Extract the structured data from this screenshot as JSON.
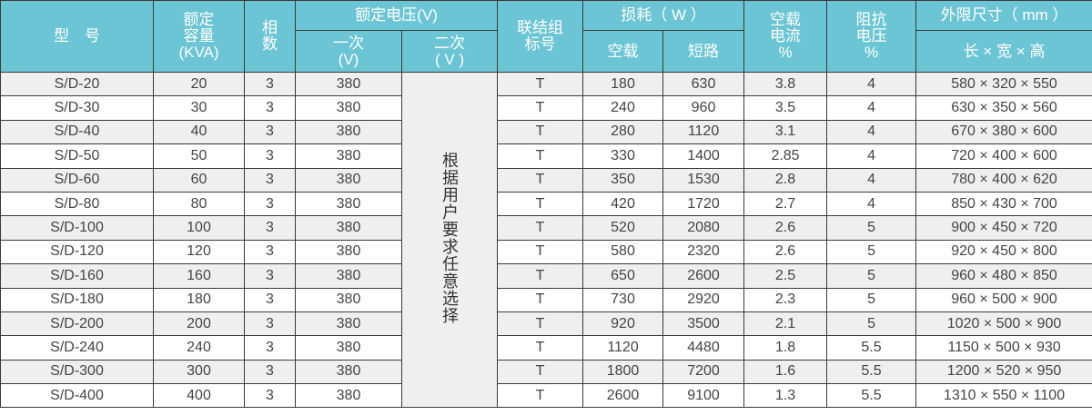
{
  "header": {
    "model": "型　号",
    "capacity": [
      "额定",
      "容量",
      "(KVA)"
    ],
    "phases": [
      "相",
      "数"
    ],
    "rated_voltage": "额定电压(V)",
    "primary": [
      "一次",
      "(V)"
    ],
    "secondary": [
      "二次",
      "( V )"
    ],
    "connection": [
      "联结组",
      "标号"
    ],
    "loss": "损耗（ W ）",
    "loss_noload": "空载",
    "loss_short": "短路",
    "noload_current": [
      "空载",
      "电流",
      "%"
    ],
    "impedance": [
      "阻抗",
      "电压",
      "%"
    ],
    "dimensions": "外限尺寸（ mm ）",
    "dimensions_sub": "长 × 宽 × 高"
  },
  "secondary_note": "根据用户要求任意选择",
  "rows": [
    {
      "model": "S/D-20",
      "kva": "20",
      "phase": "3",
      "primary": "380",
      "conn": "T",
      "p0": "180",
      "pk": "630",
      "i0": "3.8",
      "uk": "4",
      "dim": "580 × 320 × 550"
    },
    {
      "model": "S/D-30",
      "kva": "30",
      "phase": "3",
      "primary": "380",
      "conn": "T",
      "p0": "240",
      "pk": "960",
      "i0": "3.5",
      "uk": "4",
      "dim": "630 × 350 × 560"
    },
    {
      "model": "S/D-40",
      "kva": "40",
      "phase": "3",
      "primary": "380",
      "conn": "T",
      "p0": "280",
      "pk": "1120",
      "i0": "3.1",
      "uk": "4",
      "dim": "670 × 380 × 600"
    },
    {
      "model": "S/D-50",
      "kva": "50",
      "phase": "3",
      "primary": "380",
      "conn": "T",
      "p0": "330",
      "pk": "1400",
      "i0": "2.85",
      "uk": "4",
      "dim": "720 × 400 × 600"
    },
    {
      "model": "S/D-60",
      "kva": "60",
      "phase": "3",
      "primary": "380",
      "conn": "T",
      "p0": "350",
      "pk": "1530",
      "i0": "2.8",
      "uk": "4",
      "dim": "780 × 400 × 620"
    },
    {
      "model": "S/D-80",
      "kva": "80",
      "phase": "3",
      "primary": "380",
      "conn": "T",
      "p0": "420",
      "pk": "1720",
      "i0": "2.7",
      "uk": "4",
      "dim": "850 × 430 × 700"
    },
    {
      "model": "S/D-100",
      "kva": "100",
      "phase": "3",
      "primary": "380",
      "conn": "T",
      "p0": "520",
      "pk": "2080",
      "i0": "2.6",
      "uk": "5",
      "dim": "900 × 450 × 720"
    },
    {
      "model": "S/D-120",
      "kva": "120",
      "phase": "3",
      "primary": "380",
      "conn": "T",
      "p0": "580",
      "pk": "2320",
      "i0": "2.6",
      "uk": "5",
      "dim": "920 × 450 × 800"
    },
    {
      "model": "S/D-160",
      "kva": "160",
      "phase": "3",
      "primary": "380",
      "conn": "T",
      "p0": "650",
      "pk": "2600",
      "i0": "2.5",
      "uk": "5",
      "dim": "960 × 480 × 850"
    },
    {
      "model": "S/D-180",
      "kva": "180",
      "phase": "3",
      "primary": "380",
      "conn": "T",
      "p0": "730",
      "pk": "2920",
      "i0": "2.3",
      "uk": "5",
      "dim": "960 × 500 × 900"
    },
    {
      "model": "S/D-200",
      "kva": "200",
      "phase": "3",
      "primary": "380",
      "conn": "T",
      "p0": "920",
      "pk": "3500",
      "i0": "2.1",
      "uk": "5",
      "dim": "1020 × 500 × 900"
    },
    {
      "model": "S/D-240",
      "kva": "240",
      "phase": "3",
      "primary": "380",
      "conn": "T",
      "p0": "1120",
      "pk": "4480",
      "i0": "1.8",
      "uk": "5.5",
      "dim": "1150 × 500 × 930"
    },
    {
      "model": "S/D-300",
      "kva": "300",
      "phase": "3",
      "primary": "380",
      "conn": "T",
      "p0": "1800",
      "pk": "7200",
      "i0": "1.6",
      "uk": "5.5",
      "dim": "1200 × 520 × 950"
    },
    {
      "model": "S/D-400",
      "kva": "400",
      "phase": "3",
      "primary": "380",
      "conn": "T",
      "p0": "2600",
      "pk": "9100",
      "i0": "1.3",
      "uk": "5.5",
      "dim": "1310 × 550 × 1100"
    }
  ],
  "colors": {
    "header_bg": "#6cc5d4",
    "row_alt": "#efefef",
    "border": "#3a3a3a"
  }
}
